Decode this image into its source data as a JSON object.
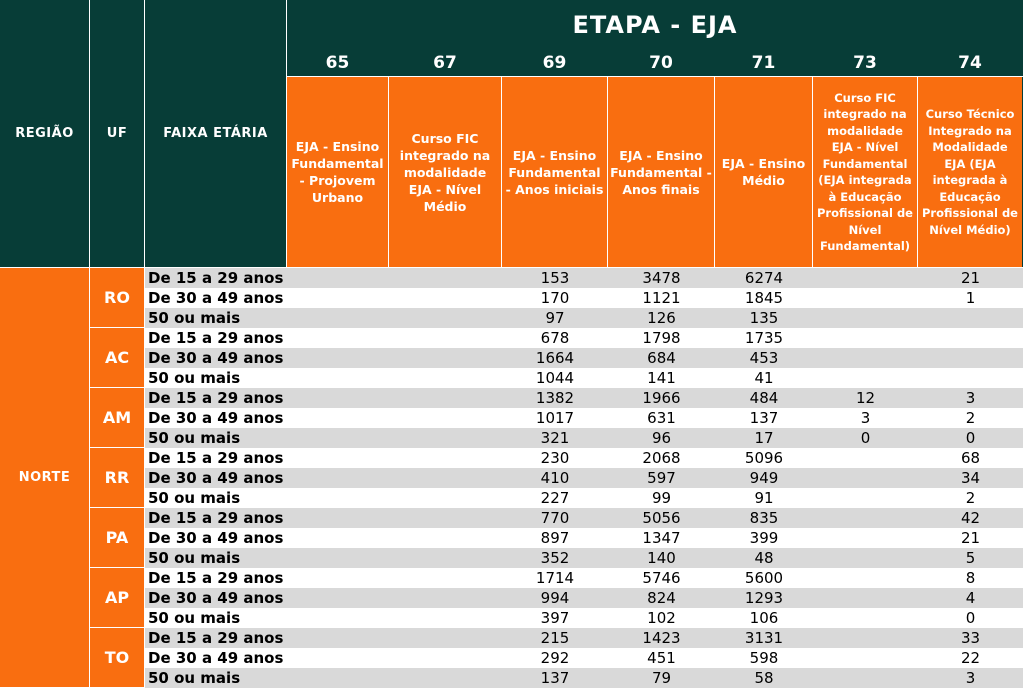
{
  "header": {
    "regiao": "REGIÃO",
    "uf": "UF",
    "faixa": "FAIXA ETÁRIA",
    "etapa": "ETAPA - EJA"
  },
  "columns": [
    {
      "code": "65",
      "desc": "EJA - Ensino Fundamental - Projovem Urbano"
    },
    {
      "code": "67",
      "desc": "Curso FIC integrado na modalidade EJA - Nível Médio"
    },
    {
      "code": "69",
      "desc": "EJA - Ensino Fundamental - Anos iniciais"
    },
    {
      "code": "70",
      "desc": "EJA - Ensino Fundamental - Anos finais"
    },
    {
      "code": "71",
      "desc": "EJA - Ensino Médio"
    },
    {
      "code": "73",
      "desc": "Curso FIC integrado na modalidade EJA - Nível Fundamental (EJA integrada à Educação Profissional de Nível Fundamental)"
    },
    {
      "code": "74",
      "desc": "Curso Técnico Integrado na Modalidade EJA (EJA integrada à Educação Profissional de Nível Médio)"
    }
  ],
  "regiao": "NORTE",
  "ufs": [
    {
      "uf": "RO",
      "rows": [
        {
          "faixa": "De 15 a 29 anos",
          "v": [
            "",
            "",
            "153",
            "3478",
            "6274",
            "",
            "21"
          ]
        },
        {
          "faixa": "De 30 a 49 anos",
          "v": [
            "",
            "",
            "170",
            "1121",
            "1845",
            "",
            "1"
          ]
        },
        {
          "faixa": "50 ou mais",
          "v": [
            "",
            "",
            "97",
            "126",
            "135",
            "",
            ""
          ]
        }
      ]
    },
    {
      "uf": "AC",
      "rows": [
        {
          "faixa": "De 15 a 29 anos",
          "v": [
            "",
            "",
            "678",
            "1798",
            "1735",
            "",
            ""
          ]
        },
        {
          "faixa": "De 30 a 49 anos",
          "v": [
            "",
            "",
            "1664",
            "684",
            "453",
            "",
            ""
          ]
        },
        {
          "faixa": "50 ou mais",
          "v": [
            "",
            "",
            "1044",
            "141",
            "41",
            "",
            ""
          ]
        }
      ]
    },
    {
      "uf": "AM",
      "rows": [
        {
          "faixa": "De 15 a 29 anos",
          "v": [
            "",
            "",
            "1382",
            "1966",
            "484",
            "12",
            "3"
          ]
        },
        {
          "faixa": "De 30 a 49 anos",
          "v": [
            "",
            "",
            "1017",
            "631",
            "137",
            "3",
            "2"
          ]
        },
        {
          "faixa": "50 ou mais",
          "v": [
            "",
            "",
            "321",
            "96",
            "17",
            "0",
            "0"
          ]
        }
      ]
    },
    {
      "uf": "RR",
      "rows": [
        {
          "faixa": "De 15 a 29 anos",
          "v": [
            "",
            "",
            "230",
            "2068",
            "5096",
            "",
            "68"
          ]
        },
        {
          "faixa": "De 30 a 49 anos",
          "v": [
            "",
            "",
            "410",
            "597",
            "949",
            "",
            "34"
          ]
        },
        {
          "faixa": "50 ou mais",
          "v": [
            "",
            "",
            "227",
            "99",
            "91",
            "",
            "2"
          ]
        }
      ]
    },
    {
      "uf": "PA",
      "rows": [
        {
          "faixa": "De 15 a 29 anos",
          "v": [
            "",
            "",
            "770",
            "5056",
            "835",
            "",
            "42"
          ]
        },
        {
          "faixa": "De 30 a 49 anos",
          "v": [
            "",
            "",
            "897",
            "1347",
            "399",
            "",
            "21"
          ]
        },
        {
          "faixa": "50 ou mais",
          "v": [
            "",
            "",
            "352",
            "140",
            "48",
            "",
            "5"
          ]
        }
      ]
    },
    {
      "uf": "AP",
      "rows": [
        {
          "faixa": "De 15 a 29 anos",
          "v": [
            "",
            "",
            "1714",
            "5746",
            "5600",
            "",
            "8"
          ]
        },
        {
          "faixa": "De 30 a 49 anos",
          "v": [
            "",
            "",
            "994",
            "824",
            "1293",
            "",
            "4"
          ]
        },
        {
          "faixa": "50 ou mais",
          "v": [
            "",
            "",
            "397",
            "102",
            "106",
            "",
            "0"
          ]
        }
      ]
    },
    {
      "uf": "TO",
      "rows": [
        {
          "faixa": "De 15 a 29 anos",
          "v": [
            "",
            "",
            "215",
            "1423",
            "3131",
            "",
            "33"
          ]
        },
        {
          "faixa": "De 30 a 49 anos",
          "v": [
            "",
            "",
            "292",
            "451",
            "598",
            "",
            "22"
          ]
        },
        {
          "faixa": "50 ou mais",
          "v": [
            "",
            "",
            "137",
            "79",
            "58",
            "",
            "3"
          ]
        }
      ]
    }
  ],
  "colors": {
    "header": "#073d37",
    "accent": "#f96e10",
    "stripe": "#d9d9d9"
  }
}
